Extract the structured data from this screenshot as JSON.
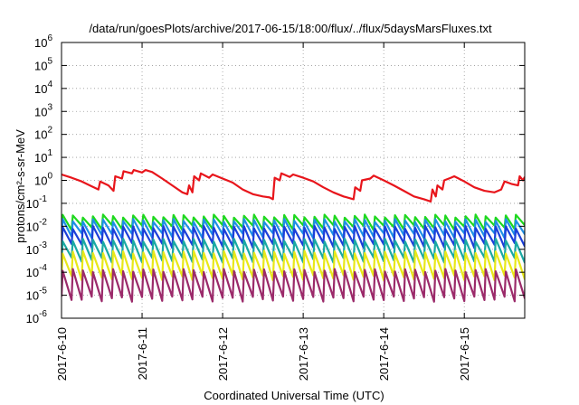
{
  "chart_data": {
    "type": "line",
    "title": "/data/run/goesPlots/archive/2017-06-15/18:00/flux/../flux/5daysMarsFluxes.txt",
    "xlabel": "Coordinated Universal Time (UTC)",
    "ylabel": "protons/cm²-s-sr-MeV",
    "y_scale": "log",
    "ylim": [
      1e-06,
      1000000.0
    ],
    "yticks": [
      {
        "v": 1e-06,
        "base": "10",
        "exp": "-6"
      },
      {
        "v": 1e-05,
        "base": "10",
        "exp": "-5"
      },
      {
        "v": 0.0001,
        "base": "10",
        "exp": "-4"
      },
      {
        "v": 0.001,
        "base": "10",
        "exp": "-3"
      },
      {
        "v": 0.01,
        "base": "10",
        "exp": "-2"
      },
      {
        "v": 0.1,
        "base": "10",
        "exp": "-1"
      },
      {
        "v": 1,
        "base": "10",
        "exp": "0"
      },
      {
        "v": 10,
        "base": "10",
        "exp": "1"
      },
      {
        "v": 100,
        "base": "10",
        "exp": "2"
      },
      {
        "v": 1000,
        "base": "10",
        "exp": "3"
      },
      {
        "v": 10000,
        "base": "10",
        "exp": "4"
      },
      {
        "v": 100000,
        "base": "10",
        "exp": "5"
      },
      {
        "v": 1000000,
        "base": "10",
        "exp": "6"
      }
    ],
    "xlim": [
      "2017-06-10T00:00",
      "2017-06-15T18:00"
    ],
    "xticks": [
      {
        "t": "2017-06-10T00:00",
        "label": "2017-6-10"
      },
      {
        "t": "2017-06-11T00:00",
        "label": "2017-6-11"
      },
      {
        "t": "2017-06-12T00:00",
        "label": "2017-6-12"
      },
      {
        "t": "2017-06-13T00:00",
        "label": "2017-6-13"
      },
      {
        "t": "2017-06-14T00:00",
        "label": "2017-6-14"
      },
      {
        "t": "2017-06-15T00:00",
        "label": "2017-6-15"
      }
    ],
    "grid": true,
    "legend": "none",
    "series": [
      {
        "color": "#e8151b",
        "points": [
          [
            "2017-06-10T00:00",
            1.8
          ],
          [
            "2017-06-10T03:00",
            1.3
          ],
          [
            "2017-06-10T06:00",
            0.9
          ],
          [
            "2017-06-10T09:00",
            0.55
          ],
          [
            "2017-06-10T11:00",
            0.4
          ],
          [
            "2017-06-10T11:30",
            0.9
          ],
          [
            "2017-06-10T14:00",
            0.6
          ],
          [
            "2017-06-10T15:30",
            0.35
          ],
          [
            "2017-06-10T16:00",
            1.5
          ],
          [
            "2017-06-10T18:00",
            1.2
          ],
          [
            "2017-06-10T18:30",
            2.5
          ],
          [
            "2017-06-10T21:00",
            2.0
          ],
          [
            "2017-06-10T21:30",
            2.8
          ],
          [
            "2017-06-11T00:00",
            2.2
          ],
          [
            "2017-06-11T01:00",
            2.8
          ],
          [
            "2017-06-11T03:00",
            2.3
          ],
          [
            "2017-06-11T06:00",
            1.2
          ],
          [
            "2017-06-11T09:00",
            0.6
          ],
          [
            "2017-06-11T12:00",
            0.3
          ],
          [
            "2017-06-11T13:30",
            0.25
          ],
          [
            "2017-06-11T14:00",
            0.6
          ],
          [
            "2017-06-11T15:00",
            0.3
          ],
          [
            "2017-06-11T15:30",
            1.5
          ],
          [
            "2017-06-11T17:00",
            1.0
          ],
          [
            "2017-06-11T17:30",
            2.0
          ],
          [
            "2017-06-11T20:00",
            1.3
          ],
          [
            "2017-06-11T21:00",
            1.8
          ],
          [
            "2017-06-12T00:00",
            1.2
          ],
          [
            "2017-06-12T03:00",
            0.8
          ],
          [
            "2017-06-12T06:00",
            0.4
          ],
          [
            "2017-06-12T09:00",
            0.25
          ],
          [
            "2017-06-12T12:00",
            0.2
          ],
          [
            "2017-06-12T14:00",
            0.18
          ],
          [
            "2017-06-12T15:00",
            0.15
          ],
          [
            "2017-06-12T15:30",
            1.3
          ],
          [
            "2017-06-12T17:00",
            1.0
          ],
          [
            "2017-06-12T17:30",
            2.0
          ],
          [
            "2017-06-12T20:00",
            1.4
          ],
          [
            "2017-06-12T21:00",
            1.8
          ],
          [
            "2017-06-13T00:00",
            1.3
          ],
          [
            "2017-06-13T03:00",
            0.9
          ],
          [
            "2017-06-13T06:00",
            0.5
          ],
          [
            "2017-06-13T09:00",
            0.3
          ],
          [
            "2017-06-13T12:00",
            0.2
          ],
          [
            "2017-06-13T15:00",
            0.15
          ],
          [
            "2017-06-13T15:30",
            0.5
          ],
          [
            "2017-06-13T17:00",
            0.35
          ],
          [
            "2017-06-13T17:30",
            1.0
          ],
          [
            "2017-06-13T20:00",
            1.2
          ],
          [
            "2017-06-13T21:00",
            1.6
          ],
          [
            "2017-06-14T00:00",
            1.0
          ],
          [
            "2017-06-14T03:00",
            0.6
          ],
          [
            "2017-06-14T06:00",
            0.35
          ],
          [
            "2017-06-14T09:00",
            0.2
          ],
          [
            "2017-06-14T12:00",
            0.15
          ],
          [
            "2017-06-14T14:00",
            0.12
          ],
          [
            "2017-06-14T14:30",
            0.4
          ],
          [
            "2017-06-14T15:30",
            0.2
          ],
          [
            "2017-06-14T16:00",
            0.6
          ],
          [
            "2017-06-14T17:30",
            0.4
          ],
          [
            "2017-06-14T18:00",
            1.0
          ],
          [
            "2017-06-14T20:00",
            1.3
          ],
          [
            "2017-06-14T21:00",
            1.5
          ],
          [
            "2017-06-15T00:00",
            0.9
          ],
          [
            "2017-06-15T03:00",
            0.5
          ],
          [
            "2017-06-15T06:00",
            0.35
          ],
          [
            "2017-06-15T09:00",
            0.3
          ],
          [
            "2017-06-15T11:00",
            0.4
          ],
          [
            "2017-06-15T12:00",
            0.9
          ],
          [
            "2017-06-15T14:00",
            0.7
          ],
          [
            "2017-06-15T16:00",
            0.6
          ],
          [
            "2017-06-15T16:30",
            1.5
          ],
          [
            "2017-06-15T17:30",
            1.0
          ],
          [
            "2017-06-15T18:00",
            1.4
          ]
        ]
      },
      {
        "color": "#1ed81e",
        "period_hours": 3,
        "hi": 0.028,
        "lo": 0.009
      },
      {
        "color": "#1f8fe6",
        "period_hours": 3,
        "hi": 0.018,
        "lo": 0.004
      },
      {
        "color": "#1c3fd9",
        "period_hours": 3,
        "hi": 0.009,
        "lo": 0.0015
      },
      {
        "color": "#1aa9a3",
        "period_hours": 3,
        "hi": 0.0025,
        "lo": 0.00035
      },
      {
        "color": "#e8e818",
        "period_hours": 3,
        "hi": 0.00075,
        "lo": 6e-05
      },
      {
        "color": "#9b2a6a",
        "period_hours": 3,
        "hi": 0.00012,
        "lo": 7e-06
      }
    ]
  }
}
